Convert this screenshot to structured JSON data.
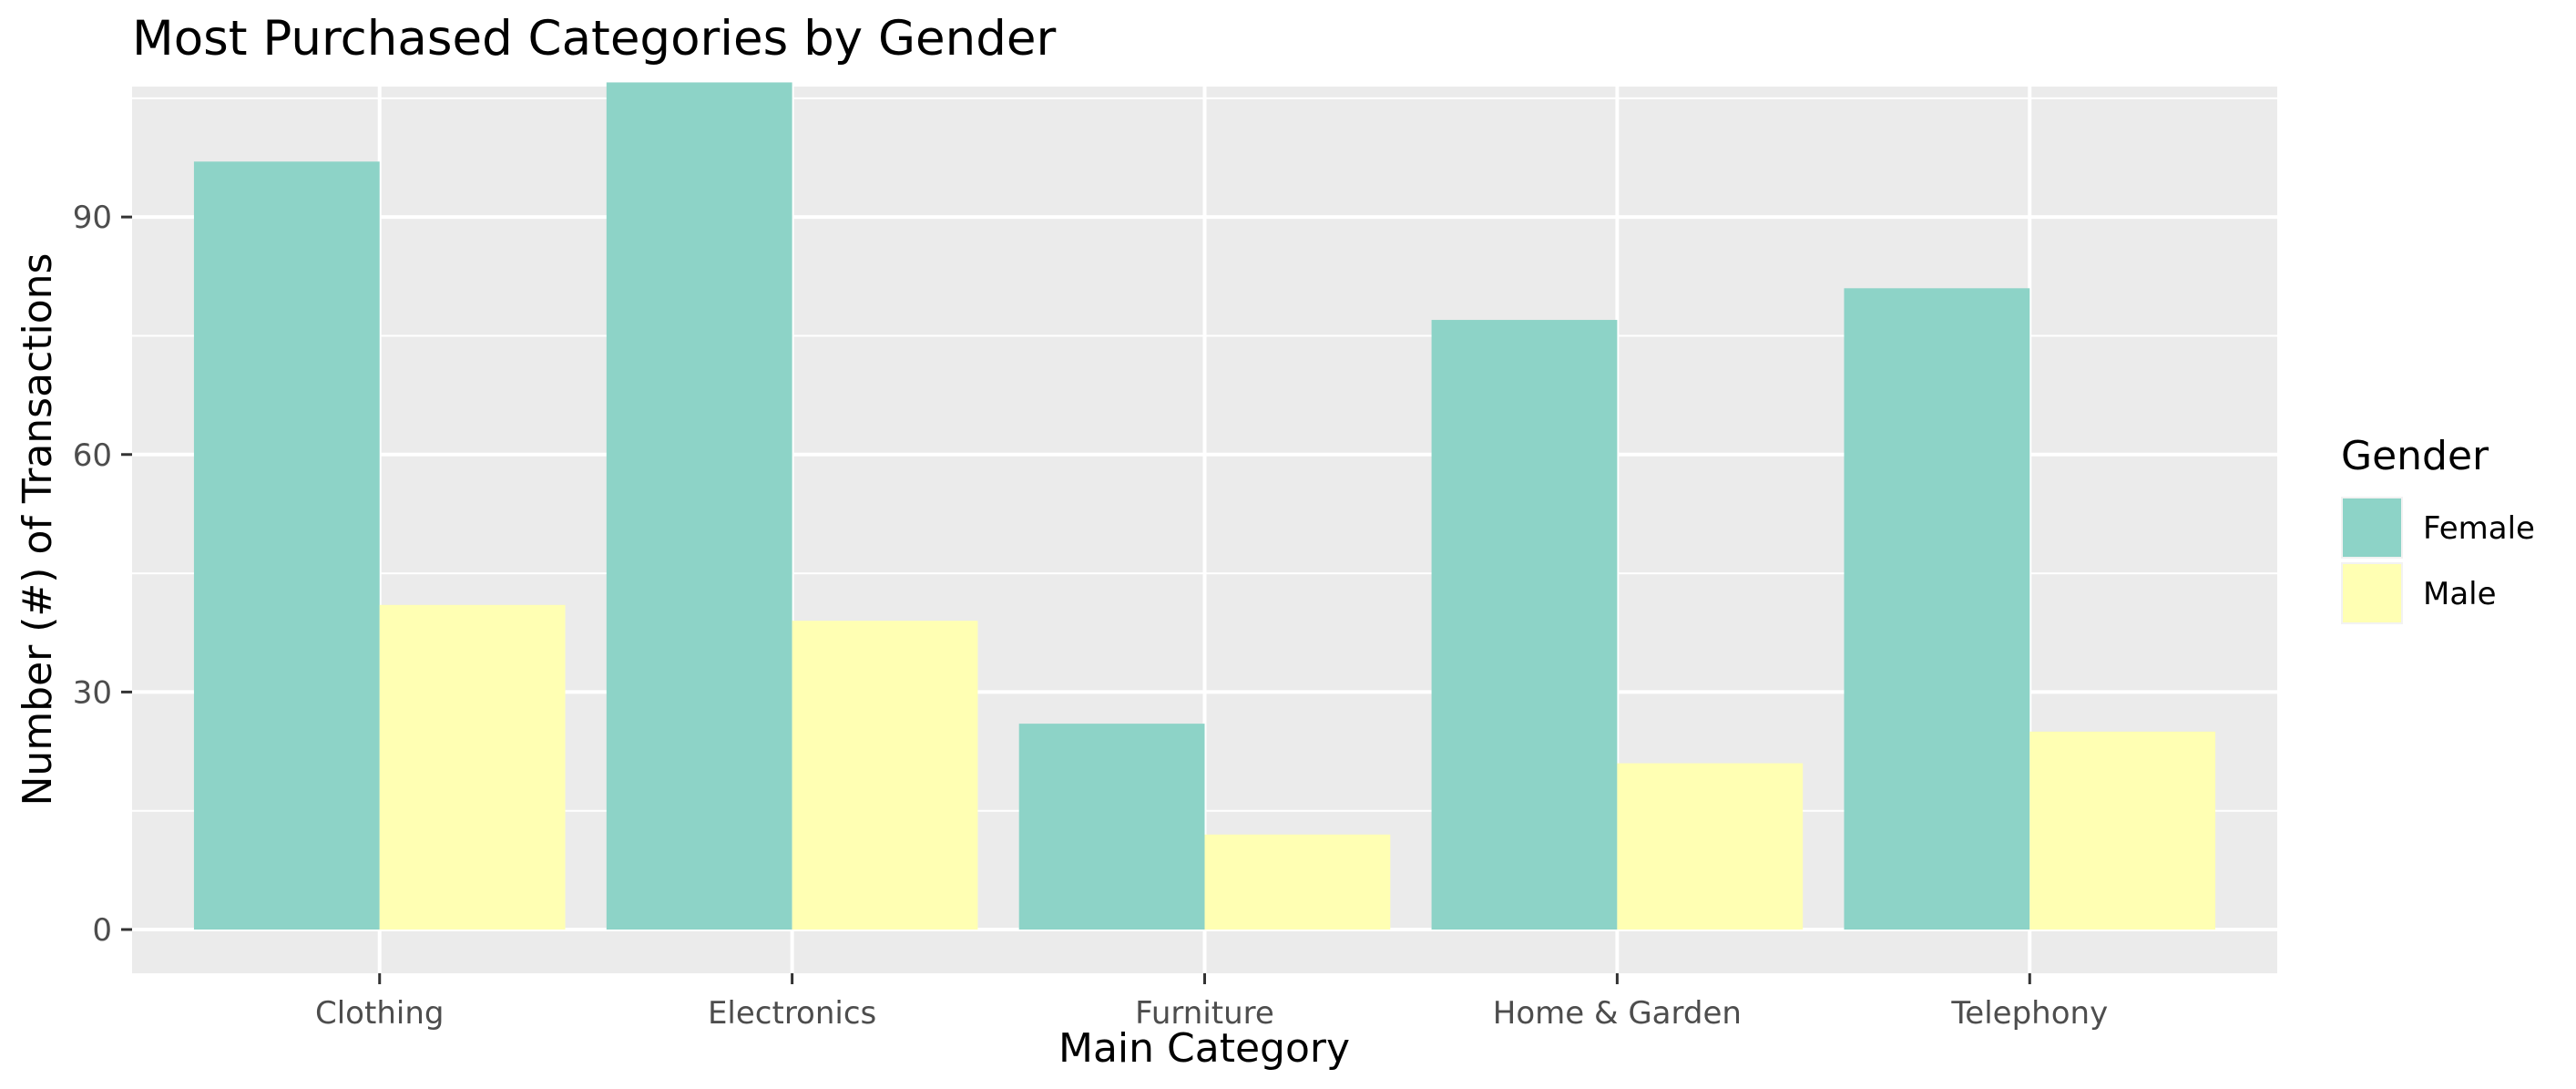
{
  "chart_data": {
    "type": "bar",
    "title": "Most Purchased Categories by Gender",
    "xlabel": "Main Category",
    "ylabel": "Number (#) of Transactions",
    "categories": [
      "Clothing",
      "Electronics",
      "Furniture",
      "Home & Garden",
      "Telephony"
    ],
    "series": [
      {
        "name": "Female",
        "color": "#8DD3C7",
        "values": [
          97,
          107,
          26,
          77,
          81
        ]
      },
      {
        "name": "Male",
        "color": "#FFFFB3",
        "values": [
          41,
          39,
          12,
          21,
          25
        ]
      }
    ],
    "ylim": [
      0,
      112
    ],
    "yticks": [
      0,
      30,
      60,
      90
    ],
    "grid": true,
    "legend": {
      "title": "Gender",
      "position": "right"
    }
  },
  "colors": {
    "panel_background": "#EBEBEB",
    "grid_major": "#FFFFFF",
    "axis_text": "#4D4D4D"
  }
}
